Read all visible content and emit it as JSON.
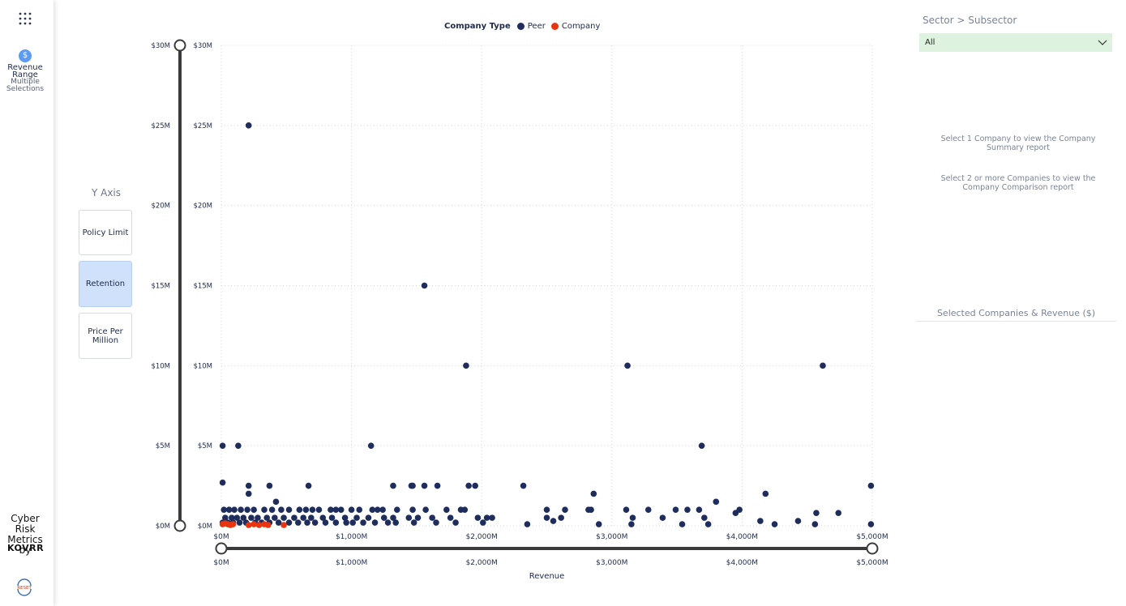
{
  "sidebar": {
    "revenue_range": "Revenue Range",
    "revenue_range_sub": "Multiple Selections",
    "revenue_icon_glyph": "$",
    "cyber_risk": "Cyber Risk Metrics by",
    "brand": "KOVRR",
    "reset_label": "RESET"
  },
  "y_axis_selector": {
    "title": "Y Axis",
    "options": [
      {
        "label": "Policy Limit",
        "active": false
      },
      {
        "label": "Retention",
        "active": true
      },
      {
        "label": "Price Per Million",
        "active": false
      }
    ]
  },
  "legend": {
    "title": "Company Type",
    "items": [
      {
        "label": "Peer",
        "color": "#1f2d5c"
      },
      {
        "label": "Company",
        "color": "#e8350f"
      }
    ]
  },
  "filters": {
    "sector_label": "Sector > Subsector",
    "sector_value": "All"
  },
  "info": {
    "line1": "Select 1 Company to view the Company Summary report",
    "line2": "Select 2 or more Companies to view the Company Comparison report",
    "selected_title": "Selected Companies & Revenue ($)"
  },
  "chart_data": {
    "type": "scatter",
    "xlabel": "Revenue",
    "ylabel": "",
    "xlim": [
      0,
      5000
    ],
    "ylim": [
      0,
      30
    ],
    "x_unit": "$M",
    "y_unit": "$M",
    "x_ticks": [
      "$0M",
      "$1,000M",
      "$2,000M",
      "$3,000M",
      "$4,000M",
      "$5,000M"
    ],
    "y_ticks": [
      "$0M",
      "$5M",
      "$10M",
      "$15M",
      "$20M",
      "$25M",
      "$30M"
    ],
    "grid": true,
    "legend_position": "top-center",
    "y_range_slider": [
      "$0M",
      "$5M",
      "$10M",
      "$15M",
      "$20M",
      "$25M",
      "$30M"
    ],
    "x_range_slider": [
      "$0M",
      "$1,000M",
      "$2,000M",
      "$3,000M",
      "$4,000M",
      "$5,000M"
    ],
    "series": [
      {
        "name": "Peer",
        "color": "#1f2d5c",
        "points": [
          [
            210,
            25
          ],
          [
            1560,
            15
          ],
          [
            1880,
            10
          ],
          [
            3120,
            10
          ],
          [
            4620,
            10
          ],
          [
            10,
            5
          ],
          [
            130,
            5
          ],
          [
            1150,
            5
          ],
          [
            3690,
            5
          ],
          [
            10,
            2.7
          ],
          [
            210,
            2.5
          ],
          [
            210,
            2
          ],
          [
            370,
            2.5
          ],
          [
            670,
            2.5
          ],
          [
            1320,
            2.5
          ],
          [
            1460,
            2.5
          ],
          [
            1470,
            2.5
          ],
          [
            1560,
            2.5
          ],
          [
            1660,
            2.5
          ],
          [
            1900,
            2.5
          ],
          [
            1950,
            2.5
          ],
          [
            2320,
            2.5
          ],
          [
            2860,
            2
          ],
          [
            4180,
            2
          ],
          [
            4990,
            2.5
          ],
          [
            420,
            1.5
          ],
          [
            3800,
            1.5
          ],
          [
            20,
            1
          ],
          [
            60,
            1
          ],
          [
            100,
            1
          ],
          [
            150,
            1
          ],
          [
            200,
            1
          ],
          [
            250,
            1
          ],
          [
            330,
            1
          ],
          [
            390,
            1
          ],
          [
            460,
            1
          ],
          [
            520,
            1
          ],
          [
            600,
            1
          ],
          [
            650,
            1
          ],
          [
            700,
            1
          ],
          [
            750,
            1
          ],
          [
            840,
            1
          ],
          [
            880,
            1
          ],
          [
            920,
            1
          ],
          [
            1000,
            1
          ],
          [
            1060,
            1
          ],
          [
            1160,
            1
          ],
          [
            1200,
            1
          ],
          [
            1240,
            1
          ],
          [
            1350,
            1
          ],
          [
            1470,
            1
          ],
          [
            1570,
            1
          ],
          [
            1730,
            1
          ],
          [
            1840,
            1
          ],
          [
            1870,
            1
          ],
          [
            2500,
            1
          ],
          [
            2640,
            1
          ],
          [
            2820,
            1
          ],
          [
            2840,
            1
          ],
          [
            3110,
            1
          ],
          [
            3280,
            1
          ],
          [
            3490,
            1
          ],
          [
            3580,
            1
          ],
          [
            3670,
            1
          ],
          [
            3980,
            1
          ],
          [
            4570,
            0.8
          ],
          [
            30,
            0.5
          ],
          [
            80,
            0.5
          ],
          [
            120,
            0.5
          ],
          [
            170,
            0.5
          ],
          [
            230,
            0.5
          ],
          [
            280,
            0.5
          ],
          [
            350,
            0.5
          ],
          [
            410,
            0.5
          ],
          [
            480,
            0.5
          ],
          [
            560,
            0.5
          ],
          [
            630,
            0.5
          ],
          [
            690,
            0.5
          ],
          [
            780,
            0.5
          ],
          [
            850,
            0.5
          ],
          [
            950,
            0.5
          ],
          [
            1040,
            0.5
          ],
          [
            1130,
            0.5
          ],
          [
            1250,
            0.5
          ],
          [
            1320,
            0.5
          ],
          [
            1440,
            0.5
          ],
          [
            1510,
            0.5
          ],
          [
            1620,
            0.5
          ],
          [
            1760,
            0.5
          ],
          [
            1970,
            0.5
          ],
          [
            2040,
            0.5
          ],
          [
            2080,
            0.5
          ],
          [
            2500,
            0.5
          ],
          [
            2610,
            0.5
          ],
          [
            3160,
            0.5
          ],
          [
            3390,
            0.5
          ],
          [
            3710,
            0.5
          ],
          [
            3950,
            0.8
          ],
          [
            4140,
            0.3
          ],
          [
            4430,
            0.3
          ],
          [
            4740,
            0.8
          ],
          [
            10,
            0.2
          ],
          [
            50,
            0.2
          ],
          [
            90,
            0.2
          ],
          [
            140,
            0.2
          ],
          [
            190,
            0.2
          ],
          [
            260,
            0.2
          ],
          [
            310,
            0.2
          ],
          [
            370,
            0.2
          ],
          [
            440,
            0.2
          ],
          [
            520,
            0.2
          ],
          [
            590,
            0.2
          ],
          [
            660,
            0.2
          ],
          [
            720,
            0.2
          ],
          [
            800,
            0.2
          ],
          [
            880,
            0.2
          ],
          [
            960,
            0.2
          ],
          [
            1010,
            0.2
          ],
          [
            1090,
            0.2
          ],
          [
            1180,
            0.2
          ],
          [
            1280,
            0.2
          ],
          [
            1340,
            0.2
          ],
          [
            1480,
            0.2
          ],
          [
            1650,
            0.2
          ],
          [
            1800,
            0.2
          ],
          [
            2010,
            0.2
          ],
          [
            2350,
            0.1
          ],
          [
            2550,
            0.3
          ],
          [
            2900,
            0.1
          ],
          [
            3150,
            0.1
          ],
          [
            3540,
            0.1
          ],
          [
            3740,
            0.1
          ],
          [
            4250,
            0.1
          ],
          [
            4560,
            0.1
          ],
          [
            4990,
            0.1
          ]
        ]
      },
      {
        "name": "Company",
        "color": "#e8350f",
        "points": [
          [
            10,
            0.1
          ],
          [
            30,
            0.15
          ],
          [
            50,
            0.1
          ],
          [
            70,
            0.05
          ],
          [
            90,
            0.1
          ],
          [
            210,
            0.05
          ],
          [
            250,
            0.1
          ],
          [
            290,
            0.05
          ],
          [
            330,
            0.1
          ],
          [
            360,
            0.05
          ],
          [
            480,
            0.05
          ]
        ]
      }
    ]
  }
}
